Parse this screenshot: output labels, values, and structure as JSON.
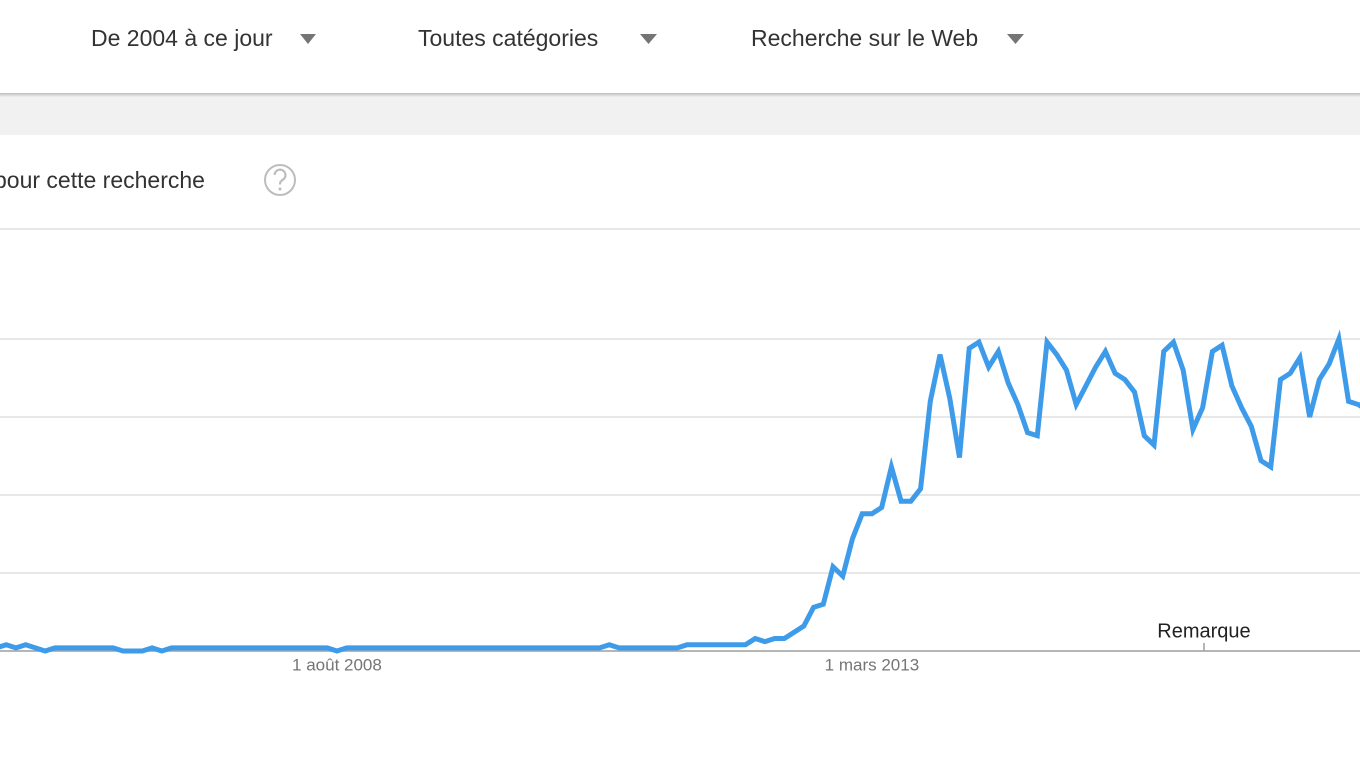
{
  "header": {
    "filters": [
      "De 2004 à ce jour",
      "Toutes catégories",
      "Recherche sur le Web"
    ]
  },
  "section_title": "pour cette recherche",
  "chart_data": {
    "type": "line",
    "categories": [
      null,
      null,
      null,
      null,
      null,
      null,
      null,
      null,
      null,
      null,
      null,
      null,
      null,
      null,
      null,
      null,
      null,
      null,
      null,
      null,
      null,
      null,
      null,
      null,
      null,
      null,
      null,
      null,
      null,
      null,
      null,
      null,
      null,
      null,
      null,
      "1 août 2008",
      null,
      null,
      null,
      null,
      null,
      null,
      null,
      null,
      null,
      null,
      null,
      null,
      null,
      null,
      null,
      null,
      null,
      null,
      null,
      null,
      null,
      null,
      null,
      null,
      null,
      null,
      null,
      null,
      null,
      null,
      null,
      null,
      null,
      null,
      null,
      null,
      null,
      null,
      null,
      null,
      null,
      null,
      null,
      null,
      null,
      null,
      null,
      null,
      null,
      null,
      null,
      null,
      null,
      null,
      "1 mars 2013",
      null,
      null,
      null,
      null,
      null,
      null,
      null,
      null,
      null,
      null,
      null,
      null,
      null,
      null,
      null,
      null,
      null,
      null,
      null,
      null,
      null,
      null,
      null,
      null,
      null,
      null,
      null,
      null,
      null,
      null,
      null,
      null,
      null,
      null,
      null,
      null,
      null,
      null,
      null,
      null,
      null,
      null,
      null,
      null,
      null,
      null,
      null,
      null,
      null,
      null,
      null
    ],
    "series": [
      {
        "color": "#3d9be9",
        "values": [
          1,
          2,
          1,
          2,
          1,
          0,
          1,
          1,
          1,
          1,
          1,
          1,
          1,
          0,
          0,
          0,
          1,
          0,
          1,
          1,
          1,
          1,
          1,
          1,
          1,
          1,
          1,
          1,
          1,
          1,
          1,
          1,
          1,
          1,
          1,
          0,
          1,
          1,
          1,
          1,
          1,
          1,
          1,
          1,
          1,
          1,
          1,
          1,
          1,
          1,
          1,
          1,
          1,
          1,
          1,
          1,
          1,
          1,
          1,
          1,
          1,
          1,
          1,
          2,
          1,
          1,
          1,
          1,
          1,
          1,
          1,
          2,
          2,
          2,
          2,
          2,
          2,
          2,
          4,
          3,
          4,
          4,
          6,
          8,
          14,
          15,
          27,
          24,
          36,
          44,
          44,
          46,
          59,
          48,
          48,
          52,
          80,
          95,
          81,
          62,
          97,
          99,
          91,
          96,
          86,
          79,
          70,
          69,
          99,
          95,
          90,
          79,
          85,
          91,
          96,
          89,
          87,
          83,
          69,
          66,
          96,
          99,
          90,
          71,
          78,
          96,
          98,
          85,
          78,
          72,
          61,
          59,
          87,
          89,
          94,
          75,
          87,
          92,
          100,
          80,
          79,
          77
        ]
      }
    ],
    "ylim": [
      0,
      100
    ],
    "yticks": [
      0,
      25,
      50,
      75,
      100
    ],
    "grid": true,
    "annotation": "Remarque"
  }
}
